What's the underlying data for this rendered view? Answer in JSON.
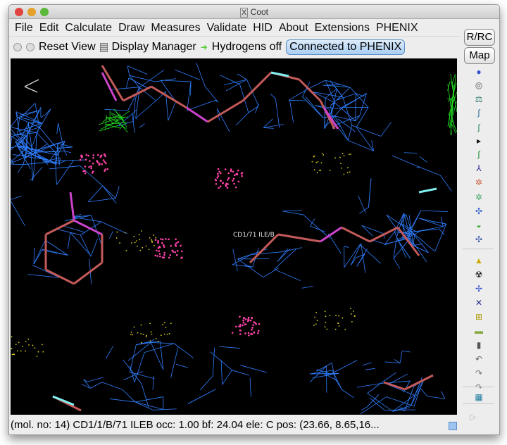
{
  "window": {
    "title": "Coot",
    "title_icon": "x11-icon"
  },
  "menu": [
    "File",
    "Edit",
    "Calculate",
    "Draw",
    "Measures",
    "Validate",
    "HID",
    "About",
    "Extensions",
    "PHENIX"
  ],
  "toolbar": {
    "reset_view": "Reset View",
    "display_manager": "Display Manager",
    "hydrogens": "Hydrogens off",
    "phenix": "Connected to PHENIX"
  },
  "side_buttons": {
    "rrc": "R/RC",
    "map": "Map"
  },
  "side_icons": [
    "rotate-translate-icon",
    "auto-fit-icon",
    "refine-icon",
    "regularize-icon",
    "rigid-body-icon",
    "more-arrow-icon",
    "add-residue-icon",
    "rotamer-icon",
    "torsion-edit-icon",
    "flip-peptide-icon",
    "side-chain-180-icon",
    "mutate-icon",
    "add-alt-conf-icon",
    "place-atom-icon",
    "delete-icon",
    "add-water-icon",
    "add-atom-icon",
    "pointer-icon",
    "edit-chi-icon",
    "clear-icon",
    "trash-icon",
    "undo-icon",
    "redo-icon",
    "color-bar-icon"
  ],
  "canvas": {
    "atom_label": "CD1/71 ILE/B",
    "colors": {
      "map": "#2f7fff",
      "difference_map": "#22dd22",
      "carbon": "#c45a5a",
      "nitrogen": "#7ff0f0",
      "oxygen": "#cc44cc",
      "dots": "#e0d020",
      "contacts": "#ff44aa"
    }
  },
  "status": {
    "text": "(mol. no: 14)  CD1/1/B/71 ILEB occ:  1.00 bf: 24.04 ele:  C pos: (23.66, 8.65,16..."
  }
}
